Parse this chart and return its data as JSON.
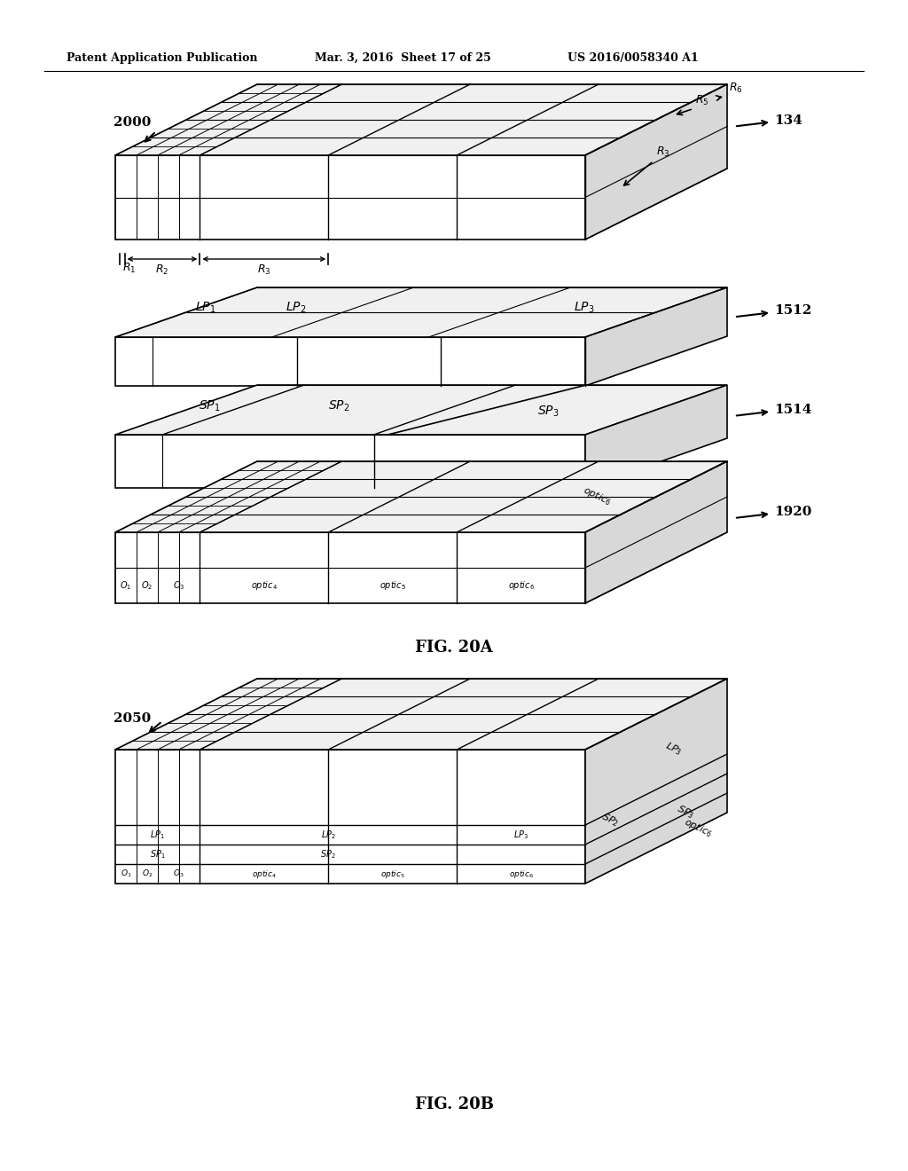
{
  "bg_color": "#ffffff",
  "header_left": "Patent Application Publication",
  "header_mid": "Mar. 3, 2016  Sheet 17 of 25",
  "header_right": "US 2016/0058340 A1",
  "fig_label_a": "FIG. 20A",
  "fig_label_b": "FIG. 20B",
  "label_2000": "2000",
  "label_2050": "2050",
  "label_134": "134",
  "label_1512": "1512",
  "label_1514": "1514",
  "label_1920": "1920"
}
